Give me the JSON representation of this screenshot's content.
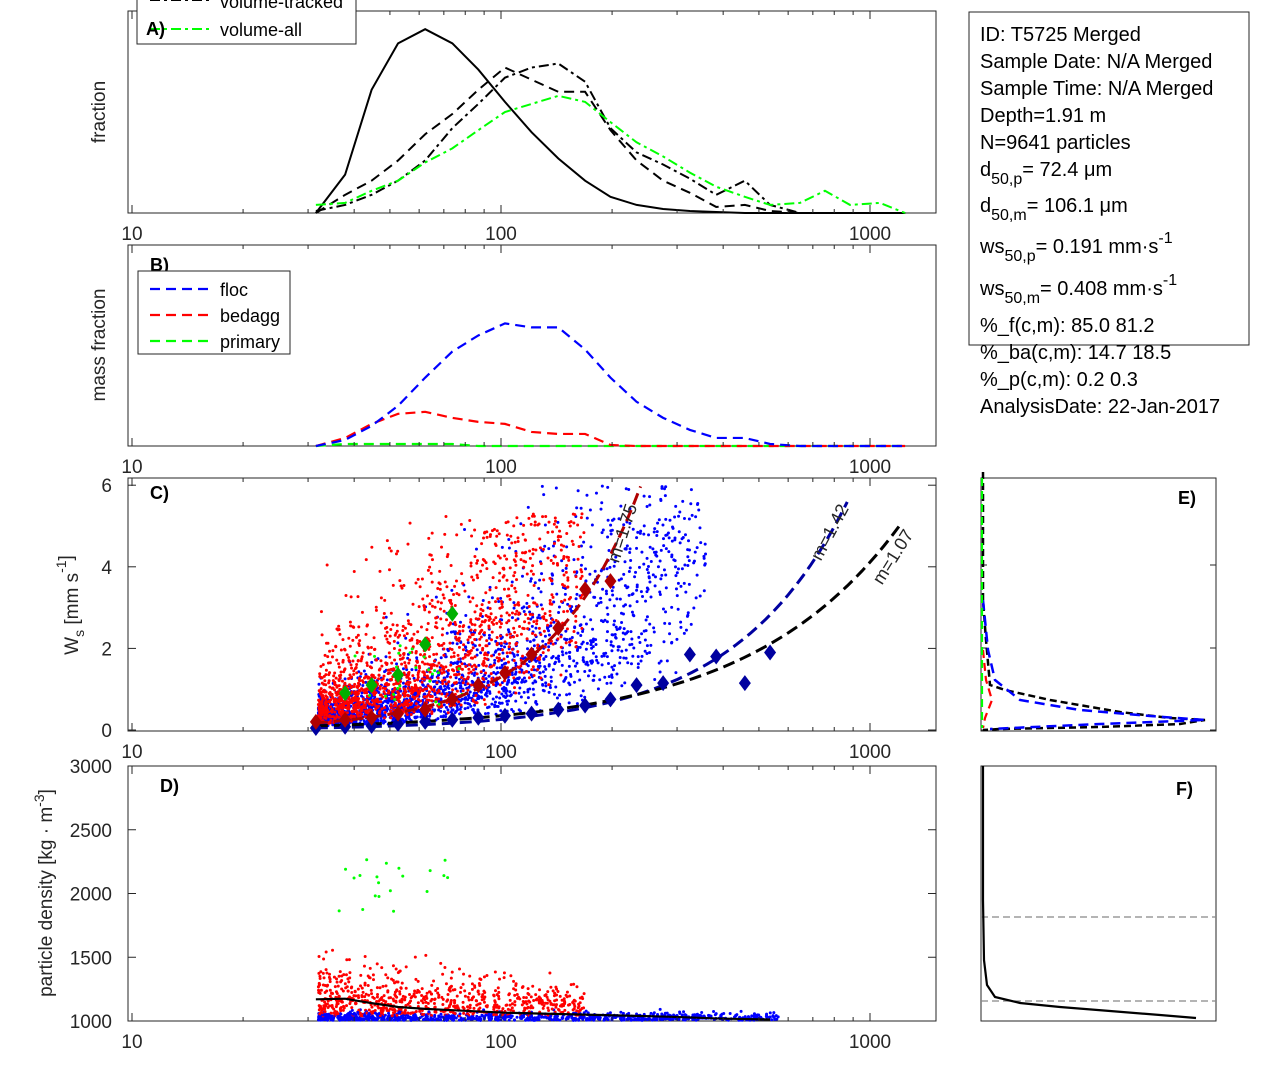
{
  "colors": {
    "floc": "#0000ff",
    "bedagg": "#ff0000",
    "primary": "#00ff00",
    "floc_mean": "#0000a0",
    "bedagg_mean": "#b00000",
    "primary_mean": "#00b000"
  },
  "info_box": {
    "lines": [
      [
        {
          "t": "ID: T5725 Merged"
        }
      ],
      [
        {
          "t": "Sample Date: N/A Merged"
        }
      ],
      [
        {
          "t": "Sample Time: N/A Merged"
        }
      ],
      [
        {
          "t": "Depth=1.91 m"
        }
      ],
      [
        {
          "t": "N=9641 particles"
        }
      ],
      [
        {
          "t": "d"
        },
        {
          "t": "50,p",
          "s": "sub"
        },
        {
          "t": "=  72.4 μm"
        }
      ],
      [
        {
          "t": "d"
        },
        {
          "t": "50,m",
          "s": "sub"
        },
        {
          "t": "= 106.1 μm"
        }
      ],
      [
        {
          "t": "ws"
        },
        {
          "t": "50,p",
          "s": "sub"
        },
        {
          "t": "= 0.191 mm·s"
        },
        {
          "t": "-1",
          "s": "sup"
        }
      ],
      [
        {
          "t": "ws"
        },
        {
          "t": "50,m",
          "s": "sub"
        },
        {
          "t": "= 0.408 mm·s"
        },
        {
          "t": "-1",
          "s": "sup"
        }
      ],
      [
        {
          "t": "%_f(c,m): 85.0 81.2"
        }
      ],
      [
        {
          "t": "%_ba(c,m): 14.7 18.5"
        }
      ],
      [
        {
          "t": "%_p(c,m): 0.2 0.3"
        }
      ],
      [
        {
          "t": "AnalysisDate: 22-Jan-2017"
        }
      ]
    ]
  },
  "chart_data": [
    {
      "panel": "A)",
      "type": "line",
      "ylabel": "fraction",
      "xscale": "log",
      "xlim": [
        10,
        1500
      ],
      "ylim": [
        0,
        1
      ],
      "xticks": [
        "10",
        "100",
        "1000"
      ],
      "legend": {
        "position": "top-left",
        "entries": [
          "volume-tracked",
          "volume-all"
        ]
      },
      "x": [
        31.5,
        37.8,
        44.6,
        52.6,
        62.3,
        73.8,
        86.8,
        102.5,
        121,
        143,
        169,
        198,
        233,
        275,
        325,
        383,
        458,
        536,
        646,
        755,
        883,
        1064,
        1245
      ],
      "series": [
        {
          "style": "solid",
          "color": "#000000",
          "values": [
            0,
            0.19,
            0.61,
            0.84,
            0.91,
            0.84,
            0.71,
            0.55,
            0.4,
            0.27,
            0.16,
            0.08,
            0.04,
            0.02,
            0.01,
            0.005,
            0,
            0,
            0,
            0,
            0,
            0,
            0
          ]
        },
        {
          "style": "dashed",
          "color": "#000000",
          "values": [
            0,
            0.09,
            0.16,
            0.26,
            0.39,
            0.49,
            0.61,
            0.72,
            0.66,
            0.6,
            0.6,
            0.41,
            0.26,
            0.16,
            0.1,
            0.03,
            0.04,
            0.01,
            0,
            0,
            0,
            0,
            0
          ]
        },
        {
          "name": "volume-tracked",
          "style": "dashdot",
          "color": "#000000",
          "values": [
            0.01,
            0.04,
            0.09,
            0.16,
            0.26,
            0.42,
            0.54,
            0.67,
            0.72,
            0.74,
            0.65,
            0.42,
            0.3,
            0.24,
            0.17,
            0.09,
            0.16,
            0.04,
            0,
            0,
            0,
            0,
            0
          ]
        },
        {
          "name": "volume-all",
          "style": "dashdot",
          "color": "#00ff00",
          "values": [
            0.04,
            0.05,
            0.11,
            0.16,
            0.25,
            0.32,
            0.41,
            0.5,
            0.54,
            0.58,
            0.55,
            0.45,
            0.35,
            0.28,
            0.2,
            0.13,
            0.08,
            0.04,
            0.05,
            0.11,
            0.04,
            0.05,
            0
          ]
        }
      ]
    },
    {
      "panel": "B)",
      "type": "line",
      "ylabel": "mass fraction",
      "xscale": "log",
      "xlim": [
        10,
        1500
      ],
      "ylim": [
        0,
        1
      ],
      "xticks": [
        "10",
        "100",
        "1000"
      ],
      "legend": {
        "position": "top-left",
        "entries": [
          "floc",
          "bedagg",
          "primary"
        ]
      },
      "x": [
        31.5,
        37.8,
        44.6,
        52.6,
        62.3,
        73.8,
        86.8,
        102.5,
        121,
        143,
        169,
        198,
        233,
        275,
        325,
        383,
        458,
        536,
        646,
        755,
        883,
        1064,
        1245
      ],
      "series": [
        {
          "name": "floc",
          "style": "dashed",
          "color": "#0000ff",
          "values": [
            0,
            0.03,
            0.1,
            0.2,
            0.34,
            0.47,
            0.55,
            0.61,
            0.59,
            0.59,
            0.48,
            0.34,
            0.22,
            0.14,
            0.08,
            0.04,
            0.04,
            0.01,
            0,
            0,
            0,
            0,
            0
          ]
        },
        {
          "name": "bedagg",
          "style": "dashed",
          "color": "#ff0000",
          "values": [
            0,
            0.04,
            0.11,
            0.16,
            0.17,
            0.14,
            0.12,
            0.11,
            0.07,
            0.06,
            0.06,
            0.005,
            0,
            0,
            0,
            0,
            0,
            0,
            0,
            0,
            0,
            0,
            0
          ]
        },
        {
          "name": "primary",
          "style": "dashed",
          "color": "#00ff00",
          "values": [
            0,
            0.01,
            0.01,
            0.01,
            0.01,
            0.01,
            0,
            0,
            0,
            0,
            0,
            0,
            0,
            0,
            0,
            0,
            0,
            0,
            0,
            0,
            0,
            0,
            0
          ]
        }
      ]
    },
    {
      "panel": "C)",
      "type": "scatter",
      "ylabel": "W",
      "ylabel_sub": "s",
      "ylabel_unit": " [mm s",
      "ylabel_sup": "-1",
      "ylabel_end": "]",
      "xscale": "log",
      "xlim": [
        10,
        1500
      ],
      "ylim": [
        0,
        6.2
      ],
      "xticks": [
        "10",
        "100",
        "1000"
      ],
      "yticks": [
        "0",
        "2",
        "4",
        "6"
      ],
      "fits": [
        {
          "label": "m=1.75",
          "m": 1.75,
          "ws_at_100": 1.3,
          "color": "#b00000",
          "xrange": [
            31.5,
            245
          ]
        },
        {
          "label": "m=1.42",
          "m": 1.42,
          "ws_at_100": 0.26,
          "color": "#0000a0",
          "xrange": [
            31.5,
            900
          ]
        },
        {
          "label": "m=1.07",
          "m": 1.07,
          "ws_at_100": 0.35,
          "color": "#000000",
          "xrange": [
            31.5,
            1250
          ]
        }
      ],
      "means": {
        "bedagg": {
          "x": [
            31.5,
            37.8,
            44.6,
            52.6,
            62.3,
            73.8,
            86.8,
            102.5,
            121,
            143,
            169,
            198
          ],
          "y": [
            0.2,
            0.25,
            0.3,
            0.4,
            0.5,
            0.75,
            1.1,
            1.4,
            1.85,
            2.5,
            3.45,
            3.65
          ]
        },
        "primary": {
          "x": [
            37.8,
            44.6,
            52.6,
            62.3,
            73.8
          ],
          "y": [
            0.9,
            1.1,
            1.35,
            2.1,
            2.85
          ]
        },
        "floc": {
          "x": [
            31.5,
            37.8,
            44.6,
            52.6,
            62.3,
            73.8,
            86.8,
            102.5,
            121,
            143,
            169,
            198,
            233,
            275,
            325,
            383,
            458,
            536
          ],
          "y": [
            0.05,
            0.08,
            0.1,
            0.15,
            0.2,
            0.25,
            0.3,
            0.35,
            0.4,
            0.5,
            0.6,
            0.75,
            1.1,
            1.15,
            1.85,
            1.8,
            1.15,
            1.9
          ]
        }
      }
    },
    {
      "panel": "D)",
      "type": "scatter",
      "ylabel": "particle density [kg · m",
      "ylabel_sup": "-3",
      "ylabel_end": "]",
      "xscale": "log",
      "xlim": [
        10,
        1500
      ],
      "ylim": [
        1000,
        3000
      ],
      "xticks": [
        "10",
        "100",
        "1000"
      ],
      "yticks": [
        "1000",
        "1500",
        "2000",
        "2500",
        "3000"
      ],
      "mean_curve": {
        "x": [
          31.5,
          37.8,
          44.6,
          52.6,
          62.3,
          73.8,
          86.8,
          102.5,
          121,
          143,
          169,
          198,
          233,
          275,
          325,
          383,
          458,
          536
        ],
        "y": [
          1170,
          1175,
          1140,
          1110,
          1095,
          1085,
          1075,
          1065,
          1060,
          1055,
          1050,
          1045,
          1040,
          1035,
          1028,
          1020,
          1015,
          1012
        ]
      }
    },
    {
      "panel": "E)",
      "type": "line",
      "orientation": "vertical profile"
    },
    {
      "panel": "F)",
      "type": "line",
      "orientation": "vertical profile",
      "reference_lines": "dashed gray"
    }
  ]
}
